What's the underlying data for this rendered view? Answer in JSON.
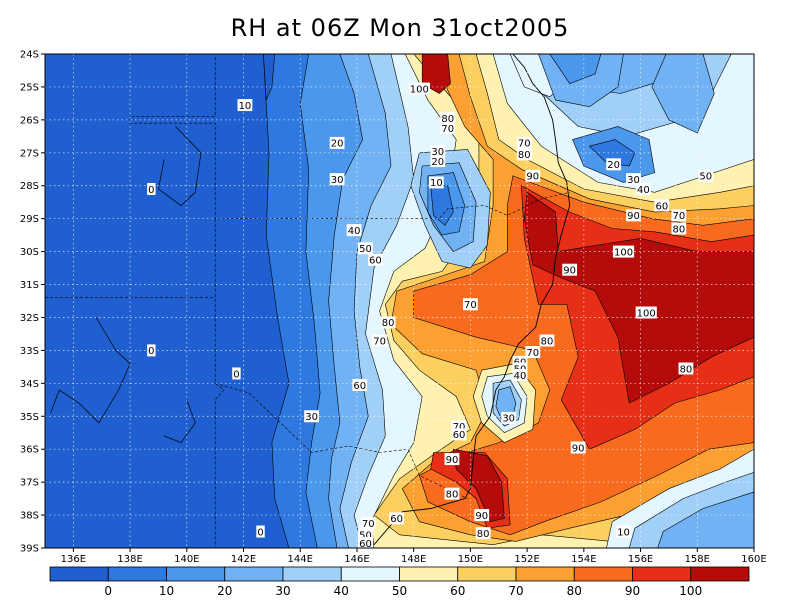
{
  "title": "RH at 06Z Mon 31oct2005",
  "map": {
    "longitude_labels": [
      "136E",
      "138E",
      "140E",
      "142E",
      "144E",
      "146E",
      "148E",
      "150E",
      "152E",
      "154E",
      "156E",
      "158E",
      "160E"
    ],
    "latitude_labels": [
      "24S",
      "25S",
      "26S",
      "27S",
      "28S",
      "29S",
      "30S",
      "31S",
      "32S",
      "33S",
      "34S",
      "35S",
      "36S",
      "37S",
      "38S",
      "39S"
    ],
    "contour_labels": [
      {
        "text": "100",
        "lon": 148.2,
        "lat": -25.05
      },
      {
        "text": "10",
        "lon": 142.05,
        "lat": -25.55
      },
      {
        "text": "80",
        "lon": 149.2,
        "lat": -25.95
      },
      {
        "text": "70",
        "lon": 149.2,
        "lat": -26.25
      },
      {
        "text": "20",
        "lon": 145.3,
        "lat": -26.7
      },
      {
        "text": "30",
        "lon": 148.85,
        "lat": -26.95
      },
      {
        "text": "20",
        "lon": 148.85,
        "lat": -27.25
      },
      {
        "text": "70",
        "lon": 151.9,
        "lat": -26.7
      },
      {
        "text": "80",
        "lon": 151.9,
        "lat": -27.05
      },
      {
        "text": "20",
        "lon": 155.05,
        "lat": -27.35
      },
      {
        "text": "30",
        "lon": 155.75,
        "lat": -27.8
      },
      {
        "text": "40",
        "lon": 156.1,
        "lat": -28.1
      },
      {
        "text": "50",
        "lon": 158.3,
        "lat": -27.7
      },
      {
        "text": "90",
        "lon": 152.2,
        "lat": -27.7
      },
      {
        "text": "0",
        "lon": 138.75,
        "lat": -28.1
      },
      {
        "text": "30",
        "lon": 145.3,
        "lat": -27.8
      },
      {
        "text": "10",
        "lon": 148.8,
        "lat": -27.9
      },
      {
        "text": "60",
        "lon": 156.75,
        "lat": -28.6
      },
      {
        "text": "90",
        "lon": 155.75,
        "lat": -28.9
      },
      {
        "text": "70",
        "lon": 157.35,
        "lat": -28.9
      },
      {
        "text": "80",
        "lon": 157.35,
        "lat": -29.3
      },
      {
        "text": "40",
        "lon": 145.9,
        "lat": -29.35
      },
      {
        "text": "50",
        "lon": 146.3,
        "lat": -29.9
      },
      {
        "text": "100",
        "lon": 155.4,
        "lat": -30.0
      },
      {
        "text": "60",
        "lon": 146.65,
        "lat": -30.25
      },
      {
        "text": "90",
        "lon": 153.5,
        "lat": -30.55
      },
      {
        "text": "70",
        "lon": 150.0,
        "lat": -31.6
      },
      {
        "text": "100",
        "lon": 156.2,
        "lat": -31.85
      },
      {
        "text": "80",
        "lon": 147.1,
        "lat": -32.15
      },
      {
        "text": "80",
        "lon": 152.7,
        "lat": -32.7
      },
      {
        "text": "70",
        "lon": 146.8,
        "lat": -32.7
      },
      {
        "text": "0",
        "lon": 138.75,
        "lat": -33.0
      },
      {
        "text": "70",
        "lon": 152.2,
        "lat": -33.05
      },
      {
        "text": "60",
        "lon": 151.75,
        "lat": -33.35
      },
      {
        "text": "50",
        "lon": 151.75,
        "lat": -33.55
      },
      {
        "text": "40",
        "lon": 151.75,
        "lat": -33.75
      },
      {
        "text": "80",
        "lon": 157.6,
        "lat": -33.55
      },
      {
        "text": "0",
        "lon": 141.75,
        "lat": -33.7
      },
      {
        "text": "60",
        "lon": 146.1,
        "lat": -34.05
      },
      {
        "text": "30",
        "lon": 144.4,
        "lat": -35.0
      },
      {
        "text": "30",
        "lon": 151.35,
        "lat": -35.05
      },
      {
        "text": "70",
        "lon": 149.6,
        "lat": -35.3
      },
      {
        "text": "60",
        "lon": 149.6,
        "lat": -35.55
      },
      {
        "text": "90",
        "lon": 153.8,
        "lat": -35.95
      },
      {
        "text": "90",
        "lon": 149.35,
        "lat": -36.3
      },
      {
        "text": "80",
        "lon": 149.35,
        "lat": -37.35
      },
      {
        "text": "90",
        "lon": 150.4,
        "lat": -38.0
      },
      {
        "text": "60",
        "lon": 147.4,
        "lat": -38.1
      },
      {
        "text": "70",
        "lon": 146.4,
        "lat": -38.25
      },
      {
        "text": "0",
        "lon": 142.6,
        "lat": -38.5
      },
      {
        "text": "80",
        "lon": 150.45,
        "lat": -38.55
      },
      {
        "text": "50",
        "lon": 146.3,
        "lat": -38.6
      },
      {
        "text": "60",
        "lon": 146.3,
        "lat": -38.85
      },
      {
        "text": "10",
        "lon": 155.4,
        "lat": -38.5
      }
    ]
  },
  "colorbar": {
    "labels": [
      "0",
      "10",
      "20",
      "30",
      "40",
      "50",
      "60",
      "70",
      "80",
      "90",
      "100"
    ],
    "colors": [
      "#1f5fcf",
      "#2e78df",
      "#4a97ec",
      "#70b2f3",
      "#a0d0f8",
      "#e4f6ff",
      "#fff2b0",
      "#fbcf60",
      "#fca032",
      "#f86a1d",
      "#e72f17",
      "#b40b0b"
    ]
  },
  "fields": {
    "contour_colors": [
      "#1f5fcf",
      "#2e78df",
      "#4a97ec",
      "#70b2f3",
      "#a0d0f8",
      "#e4f6ff",
      "#fff2b0",
      "#fbcf60",
      "#fca032",
      "#f86a1d",
      "#e72f17",
      "#b40b0b"
    ]
  }
}
